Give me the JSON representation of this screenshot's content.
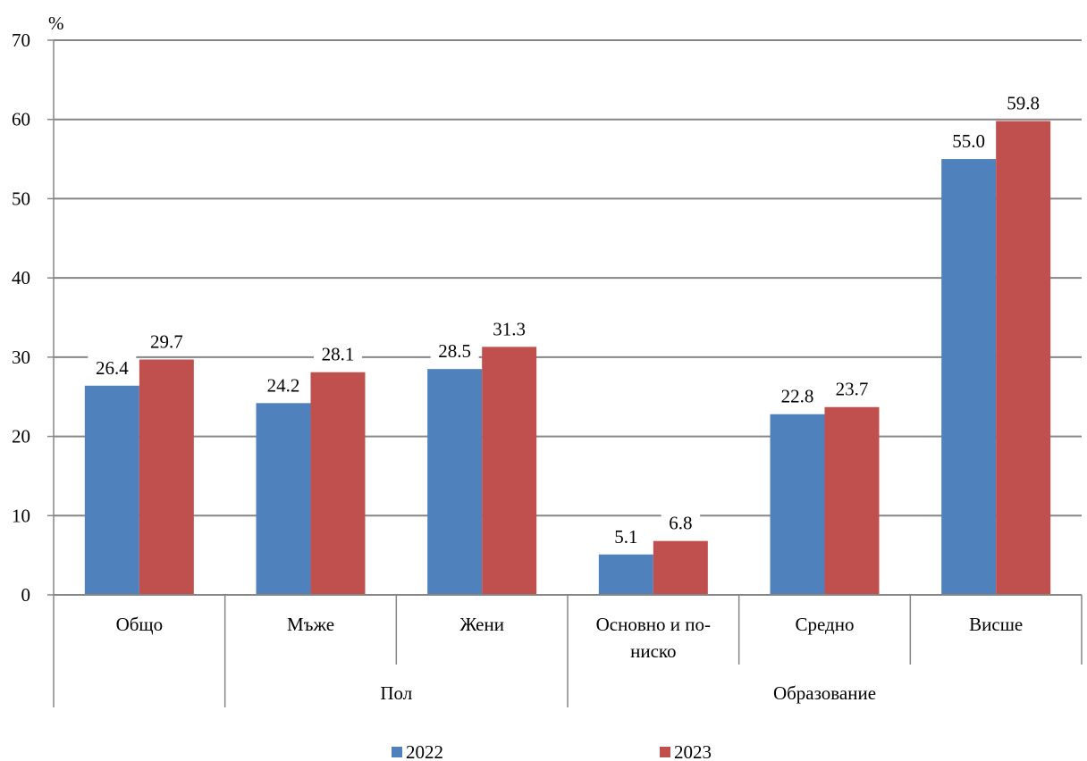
{
  "chart_data": {
    "type": "bar",
    "unit_label": "%",
    "ylim": [
      0,
      70
    ],
    "yticks": [
      0,
      10,
      20,
      30,
      40,
      50,
      60,
      70
    ],
    "grid": true,
    "legend_position": "bottom",
    "categories": [
      {
        "label": "Общо",
        "label_lines": [
          "Общо"
        ]
      },
      {
        "label": "Мъже",
        "label_lines": [
          "Мъже"
        ]
      },
      {
        "label": "Жени",
        "label_lines": [
          "Жени"
        ]
      },
      {
        "label": "Основно и по-ниско",
        "label_lines": [
          "Основно и по-",
          "ниско"
        ]
      },
      {
        "label": "Средно",
        "label_lines": [
          "Средно"
        ]
      },
      {
        "label": "Висше",
        "label_lines": [
          "Висше"
        ]
      }
    ],
    "groups": [
      {
        "label": "Пол",
        "categories": [
          1,
          2
        ]
      },
      {
        "label": "Образование",
        "categories": [
          3,
          4,
          5
        ]
      }
    ],
    "series": [
      {
        "name": "2022",
        "color": "#4F81BD",
        "values": [
          26.4,
          24.2,
          28.5,
          5.1,
          22.8,
          55.0
        ],
        "labels": [
          "26.4",
          "24.2",
          "28.5",
          "5.1",
          "22.8",
          "55.0"
        ]
      },
      {
        "name": "2023",
        "color": "#C0504D",
        "values": [
          29.7,
          28.1,
          31.3,
          6.8,
          23.7,
          59.8
        ],
        "labels": [
          "29.7",
          "28.1",
          "31.3",
          "6.8",
          "23.7",
          "59.8"
        ]
      }
    ]
  }
}
